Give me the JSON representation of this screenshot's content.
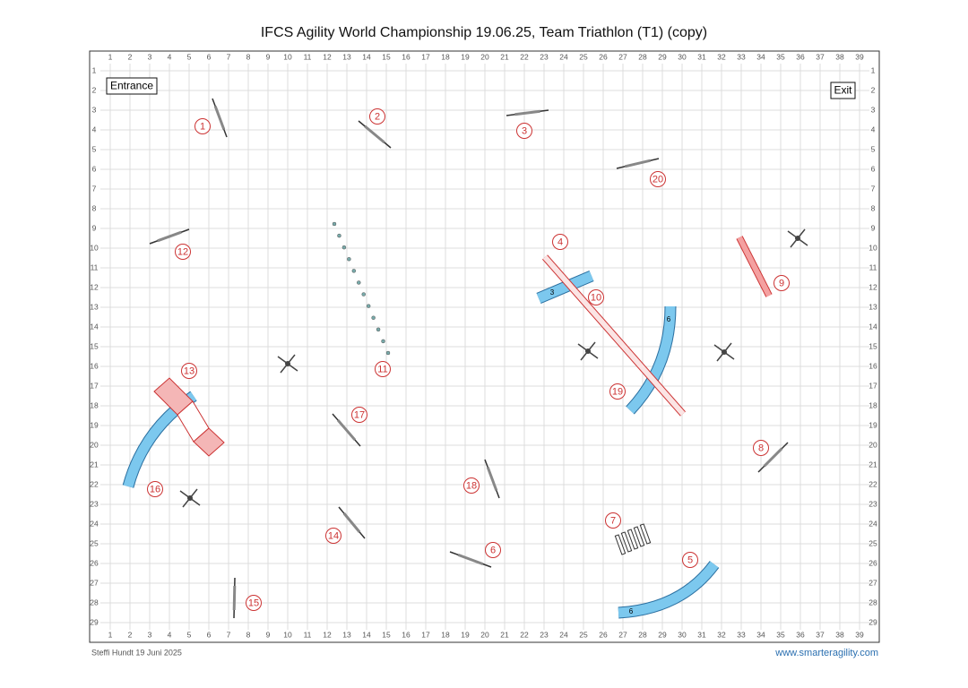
{
  "title": "IFCS Agility World Championship 19.06.25, Team Triathlon (T1) (copy)",
  "entrance": "Entrance",
  "exit": "Exit",
  "grid": {
    "columns": [
      "1",
      "2",
      "3",
      "4",
      "5",
      "6",
      "7",
      "8",
      "9",
      "10",
      "11",
      "12",
      "13",
      "14",
      "15",
      "16",
      "17",
      "18",
      "19",
      "20",
      "21",
      "22",
      "23",
      "24",
      "25",
      "26",
      "27",
      "28",
      "29",
      "30",
      "31",
      "32",
      "33",
      "34",
      "35",
      "36",
      "37",
      "38",
      "39"
    ],
    "rows": [
      "1",
      "2",
      "3",
      "4",
      "5",
      "6",
      "7",
      "8",
      "9",
      "10",
      "11",
      "12",
      "13",
      "14",
      "15",
      "16",
      "17",
      "18",
      "19",
      "20",
      "21",
      "22",
      "23",
      "24",
      "25",
      "26",
      "27",
      "28",
      "29"
    ]
  },
  "obstacle_numbers": [
    "1",
    "2",
    "3",
    "4",
    "5",
    "6",
    "7",
    "8",
    "9",
    "10",
    "11",
    "12",
    "13",
    "14",
    "15",
    "16",
    "17",
    "18",
    "19",
    "20"
  ],
  "tunnel_labels": [
    "3",
    "6",
    "6"
  ],
  "footer": {
    "author": "Steffi Hundt 19 Juni 2025",
    "website": "www.smarteragility.com"
  }
}
